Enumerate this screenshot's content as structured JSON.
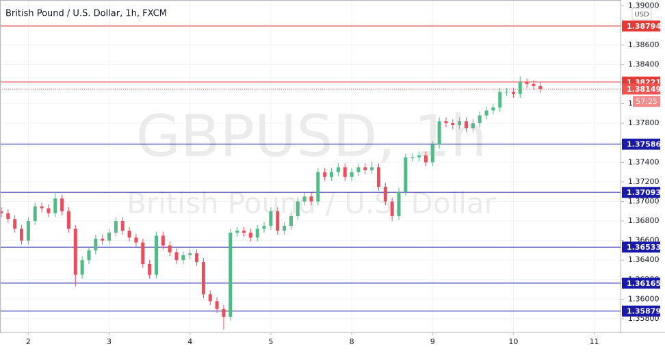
{
  "chart_data": {
    "type": "candlestick",
    "title": "British Pound / U.S. Dollar, 1h, FXCM",
    "watermark": "GBPUSD, 1h",
    "watermark_subtitle": "British Pound / U.S. Dollar",
    "currency": "USD",
    "up_color": "#53b987",
    "down_color": "#eb4d5c",
    "grid": true,
    "xlim": [
      -8.4,
      176
    ],
    "ylim": [
      1.3566,
      1.3906
    ],
    "xticks": [
      {
        "value": 0,
        "label": "2"
      },
      {
        "value": 24,
        "label": "3"
      },
      {
        "value": 48,
        "label": "4"
      },
      {
        "value": 72,
        "label": "5"
      },
      {
        "value": 96,
        "label": "8"
      },
      {
        "value": 120,
        "label": "9"
      },
      {
        "value": 144,
        "label": "10"
      },
      {
        "value": 168,
        "label": "11"
      }
    ],
    "yticks": [
      {
        "value": 1.39,
        "label": "1.39000"
      },
      {
        "value": 1.388,
        "label": "1.38800"
      },
      {
        "value": 1.386,
        "label": "1.38600"
      },
      {
        "value": 1.384,
        "label": "1.38400"
      },
      {
        "value": 1.382,
        "label": "1.38200"
      },
      {
        "value": 1.38,
        "label": "1.38000"
      },
      {
        "value": 1.378,
        "label": "1.37800"
      },
      {
        "value": 1.376,
        "label": "1.37600"
      },
      {
        "value": 1.374,
        "label": "1.37400"
      },
      {
        "value": 1.372,
        "label": "1.37200"
      },
      {
        "value": 1.37,
        "label": "1.37000"
      },
      {
        "value": 1.368,
        "label": "1.36800"
      },
      {
        "value": 1.366,
        "label": "1.36600"
      },
      {
        "value": 1.364,
        "label": "1.36400"
      },
      {
        "value": 1.362,
        "label": "1.36200"
      },
      {
        "value": 1.36,
        "label": "1.36000"
      },
      {
        "value": 1.358,
        "label": "1.35800"
      }
    ],
    "levels": [
      {
        "value": 1.38794,
        "color": "#e53935"
      },
      {
        "value": 1.38221,
        "color": "#e53935"
      },
      {
        "value": 1.37586,
        "color": "#1a1aa8"
      },
      {
        "value": 1.37093,
        "color": "#1a1aa8"
      },
      {
        "value": 1.36533,
        "color": "#1a1aa8"
      },
      {
        "value": 1.36165,
        "color": "#1a1aa8"
      },
      {
        "value": 1.35879,
        "color": "#1a1aa8"
      }
    ],
    "last_price": 1.38149,
    "last_price_color": "#ef5350",
    "countdown": "57:25",
    "x": [
      -8,
      -6,
      -4,
      -2,
      0,
      2,
      4,
      6,
      8,
      10,
      12,
      14,
      16,
      18,
      20,
      22,
      24,
      26,
      28,
      30,
      32,
      34,
      36,
      38,
      40,
      42,
      44,
      46,
      48,
      50,
      52,
      54,
      56,
      58,
      60,
      62,
      64,
      66,
      68,
      70,
      72,
      74,
      76,
      78,
      80,
      82,
      84,
      86,
      88,
      90,
      92,
      94,
      96,
      98,
      100,
      102,
      104,
      106,
      108,
      110,
      112,
      114,
      116,
      118,
      120,
      122,
      124,
      126,
      128,
      130,
      132,
      134,
      136,
      138,
      140,
      142,
      144,
      146,
      148,
      150,
      152
    ],
    "open": [
      1.369,
      1.3688,
      1.3682,
      1.3672,
      1.366,
      1.368,
      1.3695,
      1.3693,
      1.3688,
      1.3703,
      1.369,
      1.3672,
      1.3625,
      1.364,
      1.365,
      1.3662,
      1.366,
      1.3668,
      1.368,
      1.367,
      1.3663,
      1.3658,
      1.3636,
      1.3625,
      1.3665,
      1.3655,
      1.3648,
      1.364,
      1.3645,
      1.3647,
      1.3638,
      1.3605,
      1.3598,
      1.359,
      1.3582,
      1.3668,
      1.367,
      1.3668,
      1.3663,
      1.3672,
      1.3675,
      1.369,
      1.367,
      1.3675,
      1.3685,
      1.37,
      1.3705,
      1.37,
      1.373,
      1.3725,
      1.373,
      1.3735,
      1.3725,
      1.373,
      1.3735,
      1.3732,
      1.3735,
      1.3715,
      1.37,
      1.3685,
      1.371,
      1.3745,
      1.3745,
      1.3747,
      1.374,
      1.3758,
      1.3782,
      1.378,
      1.3778,
      1.3782,
      1.3775,
      1.378,
      1.3788,
      1.3793,
      1.3796,
      1.3812,
      1.3812,
      1.381,
      1.3822,
      1.382,
      1.3818
    ],
    "high": [
      1.3694,
      1.3692,
      1.3686,
      1.3676,
      1.3684,
      1.3699,
      1.3699,
      1.3697,
      1.371,
      1.3707,
      1.3694,
      1.3676,
      1.3644,
      1.3654,
      1.3666,
      1.3666,
      1.3672,
      1.3684,
      1.3684,
      1.3674,
      1.3667,
      1.3662,
      1.364,
      1.3669,
      1.3669,
      1.3659,
      1.3652,
      1.3649,
      1.3651,
      1.3651,
      1.3642,
      1.3609,
      1.3602,
      1.3594,
      1.3672,
      1.3674,
      1.3674,
      1.3672,
      1.3676,
      1.3679,
      1.3694,
      1.3694,
      1.3679,
      1.3689,
      1.3704,
      1.3709,
      1.3709,
      1.3734,
      1.3734,
      1.3734,
      1.3739,
      1.3739,
      1.3734,
      1.3739,
      1.3739,
      1.3741,
      1.3739,
      1.3719,
      1.3704,
      1.3714,
      1.3749,
      1.3749,
      1.3751,
      1.3751,
      1.3762,
      1.3786,
      1.3786,
      1.3784,
      1.3786,
      1.3786,
      1.3784,
      1.3792,
      1.3797,
      1.38,
      1.3816,
      1.3816,
      1.3816,
      1.3828,
      1.3826,
      1.3824,
      1.3822
    ],
    "low": [
      1.3684,
      1.3678,
      1.3668,
      1.3656,
      1.3656,
      1.3676,
      1.3689,
      1.3684,
      1.3684,
      1.3686,
      1.3668,
      1.3613,
      1.3621,
      1.3636,
      1.3646,
      1.3656,
      1.3656,
      1.3664,
      1.3666,
      1.3659,
      1.3654,
      1.3632,
      1.3621,
      1.3621,
      1.3651,
      1.3644,
      1.3636,
      1.3636,
      1.3641,
      1.3634,
      1.3601,
      1.3594,
      1.3586,
      1.3569,
      1.3578,
      1.3664,
      1.3664,
      1.3659,
      1.3659,
      1.3668,
      1.3671,
      1.3666,
      1.3666,
      1.3671,
      1.3681,
      1.3696,
      1.3696,
      1.3696,
      1.3721,
      1.3721,
      1.3726,
      1.3721,
      1.3721,
      1.3726,
      1.3728,
      1.3728,
      1.3711,
      1.3696,
      1.368,
      1.3681,
      1.3706,
      1.3741,
      1.3741,
      1.3736,
      1.3736,
      1.3754,
      1.3776,
      1.3774,
      1.3774,
      1.3771,
      1.3771,
      1.3776,
      1.3784,
      1.3789,
      1.3792,
      1.3808,
      1.3806,
      1.3806,
      1.3816,
      1.3814,
      1.3811
    ],
    "close": [
      1.3688,
      1.3682,
      1.3672,
      1.366,
      1.368,
      1.3695,
      1.3693,
      1.3688,
      1.3703,
      1.369,
      1.3672,
      1.3625,
      1.364,
      1.365,
      1.3662,
      1.366,
      1.3668,
      1.368,
      1.367,
      1.3663,
      1.3658,
      1.3636,
      1.3625,
      1.3665,
      1.3655,
      1.3648,
      1.364,
      1.3645,
      1.3647,
      1.3638,
      1.3605,
      1.3598,
      1.359,
      1.3582,
      1.3668,
      1.367,
      1.3668,
      1.3663,
      1.3672,
      1.3675,
      1.369,
      1.367,
      1.3675,
      1.3685,
      1.37,
      1.3705,
      1.37,
      1.373,
      1.3725,
      1.373,
      1.3735,
      1.3725,
      1.373,
      1.3735,
      1.3732,
      1.3735,
      1.3715,
      1.37,
      1.3685,
      1.371,
      1.3745,
      1.3745,
      1.3747,
      1.374,
      1.3758,
      1.3782,
      1.378,
      1.3778,
      1.3782,
      1.3775,
      1.378,
      1.3788,
      1.3793,
      1.3796,
      1.3812,
      1.3812,
      1.381,
      1.3822,
      1.382,
      1.3818,
      1.38149
    ]
  }
}
